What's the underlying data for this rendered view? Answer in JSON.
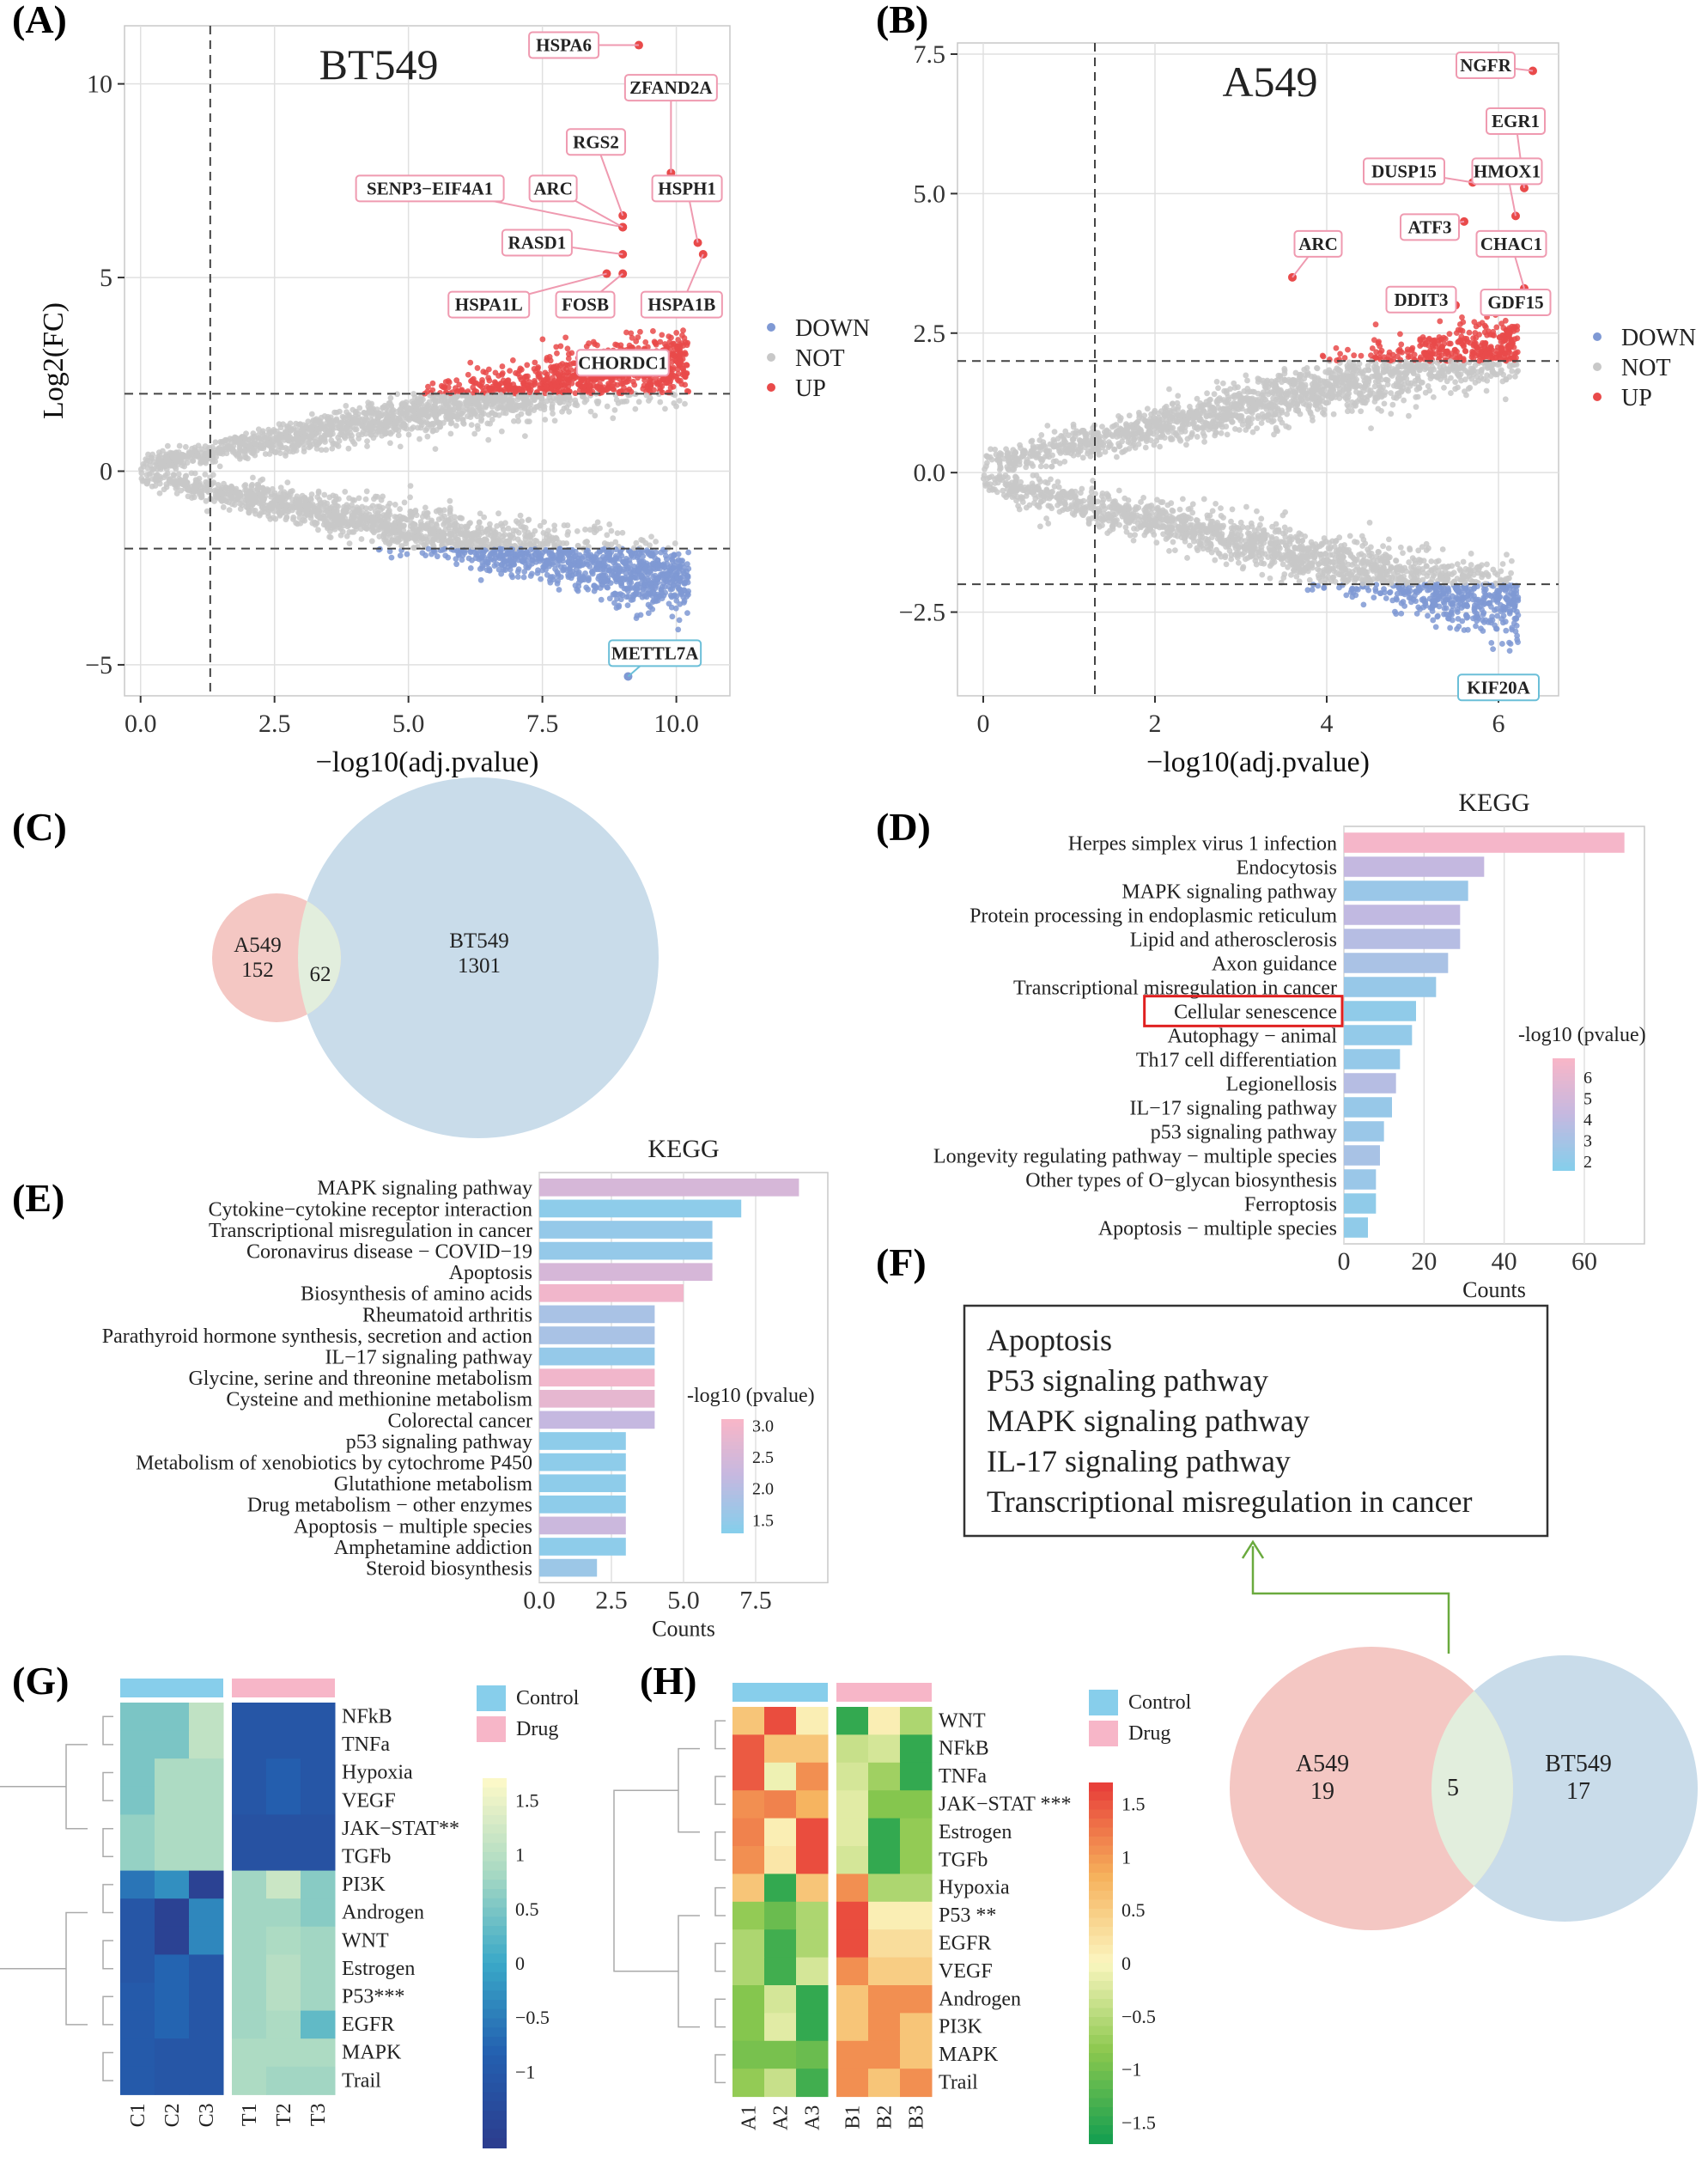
{
  "panel_labels": [
    "(A)",
    "(B)",
    "(C)",
    "(D)",
    "(E)",
    "(F)",
    "(G)",
    "(H)"
  ],
  "chart_data": [
    {
      "id": "A",
      "type": "scatter",
      "title": "BT549",
      "xlabel": "−log10(adj.pvalue)",
      "ylabel": "Log2(FC)",
      "xlim": [
        -0.3,
        11
      ],
      "ylim": [
        -5.8,
        11.5
      ],
      "xticks": [
        "0.0",
        "2.5",
        "5.0",
        "7.5",
        "10.0"
      ],
      "xtick_vals": [
        0,
        2.5,
        5,
        7.5,
        10
      ],
      "yticks": [
        "−5",
        "0",
        "5",
        "10"
      ],
      "ytick_vals": [
        -5,
        0,
        5,
        10
      ],
      "vline": 1.3,
      "hlines": [
        2,
        -2
      ],
      "legend": [
        "DOWN",
        "NOT",
        "UP"
      ],
      "legend_colors": [
        "#7f99d4",
        "#c8c8c8",
        "#e94a4a"
      ],
      "labels": [
        {
          "text": "HSPA6",
          "x": 9.3,
          "y": 11.0,
          "lx": 7.9,
          "ly": 11.0
        },
        {
          "text": "ZFAND2A",
          "x": 9.9,
          "y": 7.7,
          "lx": 9.9,
          "ly": 9.9
        },
        {
          "text": "RGS2",
          "x": 9.0,
          "y": 6.6,
          "lx": 8.5,
          "ly": 8.5
        },
        {
          "text": "HSPH1",
          "x": 10.4,
          "y": 5.9,
          "lx": 10.2,
          "ly": 7.3
        },
        {
          "text": "SENP3−EIF4A1",
          "x": 9.0,
          "y": 6.3,
          "lx": 5.4,
          "ly": 7.3
        },
        {
          "text": "ARC",
          "x": 9.0,
          "y": 6.3,
          "lx": 7.7,
          "ly": 7.3
        },
        {
          "text": "RASD1",
          "x": 9.0,
          "y": 5.6,
          "lx": 7.4,
          "ly": 5.9
        },
        {
          "text": "HSPA1L",
          "x": 8.7,
          "y": 5.1,
          "lx": 6.5,
          "ly": 4.3
        },
        {
          "text": "FOSB",
          "x": 9.0,
          "y": 5.1,
          "lx": 8.3,
          "ly": 4.3
        },
        {
          "text": "HSPA1B",
          "x": 10.5,
          "y": 5.6,
          "lx": 10.1,
          "ly": 4.3
        },
        {
          "text": "CHORDC1",
          "x": 9.0,
          "y": 2.8,
          "lx": 9.0,
          "ly": 2.8
        },
        {
          "text": "METTL7A",
          "x": 9.1,
          "y": -5.3,
          "lx": 9.6,
          "ly": -4.7
        }
      ]
    },
    {
      "id": "B",
      "type": "scatter",
      "title": "A549",
      "xlabel": "−log10(adj.pvalue)",
      "ylabel": "",
      "xlim": [
        -0.3,
        6.7
      ],
      "ylim": [
        -4.0,
        7.7
      ],
      "xticks": [
        "0",
        "2",
        "4",
        "6"
      ],
      "xtick_vals": [
        0,
        2,
        4,
        6
      ],
      "yticks": [
        "−2.5",
        "0.0",
        "2.5",
        "5.0",
        "7.5"
      ],
      "ytick_vals": [
        -2.5,
        0,
        2.5,
        5,
        7.5
      ],
      "vline": 1.3,
      "hlines": [
        2,
        -2
      ],
      "legend": [
        "DOWN",
        "NOT",
        "UP"
      ],
      "legend_colors": [
        "#7f99d4",
        "#c8c8c8",
        "#e94a4a"
      ],
      "labels": [
        {
          "text": "NGFR",
          "x": 6.4,
          "y": 7.2,
          "lx": 5.85,
          "ly": 7.3
        },
        {
          "text": "EGR1",
          "x": 6.3,
          "y": 5.1,
          "lx": 6.2,
          "ly": 6.3
        },
        {
          "text": "DUSP15",
          "x": 5.7,
          "y": 5.2,
          "lx": 4.9,
          "ly": 5.4
        },
        {
          "text": "HMOX1",
          "x": 6.2,
          "y": 4.6,
          "lx": 6.1,
          "ly": 5.4
        },
        {
          "text": "ATF3",
          "x": 5.6,
          "y": 4.5,
          "lx": 5.2,
          "ly": 4.4
        },
        {
          "text": "ARC",
          "x": 3.6,
          "y": 3.5,
          "lx": 3.9,
          "ly": 4.1
        },
        {
          "text": "CHAC1",
          "x": 6.3,
          "y": 3.3,
          "lx": 6.15,
          "ly": 4.1
        },
        {
          "text": "DDIT3",
          "x": 5.5,
          "y": 3.0,
          "lx": 5.1,
          "ly": 3.1
        },
        {
          "text": "GDF15",
          "x": 6.4,
          "y": 3.2,
          "lx": 6.2,
          "ly": 3.05
        },
        {
          "text": "KIF20A",
          "x": 6.4,
          "y": -3.8,
          "lx": 6.0,
          "ly": -3.85
        }
      ]
    },
    {
      "id": "C",
      "type": "venn",
      "sets": [
        {
          "name": "A549",
          "count": "152"
        },
        {
          "name": "BT549",
          "count": "1301"
        }
      ],
      "overlap": "62",
      "colors": [
        "#f4c7c3",
        "#c9dcea",
        "#e2eedd"
      ]
    },
    {
      "id": "D",
      "type": "bar",
      "title": "KEGG",
      "xlabel": "Counts",
      "xlim": [
        0,
        75
      ],
      "xticks": [
        "0",
        "20",
        "40",
        "60"
      ],
      "xtick_vals": [
        0,
        20,
        40,
        60
      ],
      "categories": [
        "Herpes simplex virus 1 infection",
        "Endocytosis",
        "MAPK signaling pathway",
        "Protein processing in endoplasmic reticulum",
        "Lipid and atherosclerosis",
        "Axon guidance",
        "Transcriptional misregulation in cancer",
        "Cellular senescence",
        "Autophagy − animal",
        "Th17 cell differentiation",
        "Legionellosis",
        "IL−17 signaling pathway",
        "p53 signaling pathway",
        "Longevity regulating pathway − multiple species",
        "Other types of O−glycan biosynthesis",
        "Ferroptosis",
        "Apoptosis − multiple species"
      ],
      "values": [
        70,
        35,
        31,
        29,
        29,
        26,
        23,
        18,
        17,
        14,
        13,
        12,
        10,
        9,
        8,
        8,
        6
      ],
      "neglog10p": [
        6.8,
        4.2,
        2.4,
        4.1,
        3.6,
        3.1,
        2.3,
        2.0,
        2.1,
        2.2,
        3.6,
        2.3,
        2.4,
        3.0,
        2.4,
        2.0,
        2.0
      ],
      "highlight": "Cellular senescence",
      "legend_title": "-log10 (pvalue)",
      "legend_ticks": [
        "6",
        "5",
        "4",
        "3",
        "2"
      ],
      "legend_tick_vals": [
        6,
        5,
        4,
        3,
        2
      ],
      "legend_range": [
        1.6,
        6.9
      ]
    },
    {
      "id": "E",
      "type": "bar",
      "title": "KEGG",
      "xlabel": "Counts",
      "xlim": [
        0,
        10
      ],
      "xticks": [
        "0.0",
        "2.5",
        "5.0",
        "7.5"
      ],
      "xtick_vals": [
        0,
        2.5,
        5,
        7.5
      ],
      "categories": [
        "MAPK signaling pathway",
        "Cytokine−cytokine receptor interaction",
        "Transcriptional misregulation in cancer",
        "Coronavirus disease − COVID−19",
        "Apoptosis",
        "Biosynthesis of amino acids",
        "Rheumatoid arthritis",
        "Parathyroid hormone synthesis, secretion and action",
        "IL−17 signaling pathway",
        "Glycine, serine and threonine metabolism",
        "Cysteine and methionine metabolism",
        "Colorectal cancer",
        "p53 signaling pathway",
        "Metabolism of xenobiotics by cytochrome P450",
        "Glutathione metabolism",
        "Drug metabolism − other enzymes",
        "Apoptosis − multiple species",
        "Amphetamine addiction",
        "Steroid biosynthesis"
      ],
      "values": [
        9,
        7,
        6,
        6,
        6,
        5,
        4,
        4,
        4,
        4,
        4,
        4,
        3,
        3,
        3,
        3,
        3,
        3,
        2
      ],
      "neglog10p": [
        2.5,
        1.4,
        1.5,
        1.5,
        2.5,
        3.0,
        1.8,
        1.8,
        1.5,
        3.0,
        2.8,
        2.2,
        1.4,
        1.4,
        1.4,
        1.4,
        2.3,
        1.4,
        1.6
      ],
      "legend_title": "-log10 (pvalue)",
      "legend_ticks": [
        "3.0",
        "2.5",
        "2.0",
        "1.5"
      ],
      "legend_tick_vals": [
        3.0,
        2.5,
        2.0,
        1.5
      ],
      "legend_range": [
        1.3,
        3.1
      ]
    },
    {
      "id": "F",
      "type": "venn",
      "sets": [
        {
          "name": "A549",
          "count": "19"
        },
        {
          "name": "BT549",
          "count": "17"
        }
      ],
      "overlap": "5",
      "colors": [
        "#f4c7c3",
        "#c9dcea",
        "#e2eedd"
      ],
      "box_items": [
        "Apoptosis",
        "P53 signaling pathway",
        "MAPK signaling pathway",
        "IL-17 signaling pathway",
        "Transcriptional misregulation in cancer"
      ]
    },
    {
      "id": "G",
      "type": "heatmap",
      "palette": "blue",
      "columns": [
        "C1",
        "C2",
        "C3",
        "T1",
        "T2",
        "T3"
      ],
      "rows": [
        "NFkB",
        "TNFa",
        "Hypoxia",
        "VEGF",
        "JAK−STAT**",
        "TGFb",
        "PI3K",
        "Androgen",
        "WNT",
        "Estrogen",
        "P53***",
        "EGFR",
        "MAPK",
        "Trail"
      ],
      "highlight_rows": [
        "JAK−STAT**",
        "P53***"
      ],
      "values": [
        [
          0.5,
          0.5,
          1.1,
          -1.1,
          -1.1,
          -1.1
        ],
        [
          0.5,
          0.5,
          1.1,
          -1.1,
          -1.1,
          -1.1
        ],
        [
          0.5,
          0.9,
          0.9,
          -1.1,
          -0.9,
          -1.1
        ],
        [
          0.5,
          0.9,
          0.9,
          -1.1,
          -0.9,
          -1.1
        ],
        [
          0.7,
          0.9,
          0.9,
          -1.2,
          -1.2,
          -1.2
        ],
        [
          0.7,
          0.9,
          0.9,
          -1.2,
          -1.2,
          -1.2
        ],
        [
          -0.6,
          -0.3,
          -1.6,
          0.8,
          1.2,
          0.6
        ],
        [
          -1.1,
          -1.6,
          -0.4,
          0.8,
          0.8,
          0.6
        ],
        [
          -1.1,
          -1.6,
          -0.4,
          0.8,
          0.9,
          0.8
        ],
        [
          -1.1,
          -0.8,
          -1.1,
          0.8,
          1.0,
          0.8
        ],
        [
          -1.0,
          -0.8,
          -1.1,
          0.8,
          1.0,
          0.8
        ],
        [
          -1.0,
          -0.8,
          -1.1,
          0.8,
          0.9,
          0.3
        ],
        [
          -1.0,
          -1.1,
          -1.1,
          0.9,
          0.9,
          0.9
        ],
        [
          -1.0,
          -1.1,
          -1.1,
          0.9,
          0.8,
          0.8
        ]
      ],
      "legend": [
        "Control",
        "Drug"
      ],
      "legend_colors": [
        "#87ceeb",
        "#f7b6c8"
      ],
      "scale_ticks": [
        "1.5",
        "1",
        "0.5",
        "0",
        "−0.5",
        "−1"
      ],
      "scale_tick_vals": [
        1.5,
        1,
        0.5,
        0,
        -0.5,
        -1
      ],
      "scale_range": [
        -1.7,
        1.7
      ]
    },
    {
      "id": "H",
      "type": "heatmap",
      "palette": "redgreen",
      "columns": [
        "A1",
        "A2",
        "A3",
        "B1",
        "B2",
        "B3"
      ],
      "rows": [
        "WNT",
        "NFkB",
        "TNFa",
        "JAK−STAT ***",
        "Estrogen",
        "TGFb",
        "Hypoxia",
        "P53 **",
        "EGFR",
        "VEGF",
        "Androgen",
        "PI3K",
        "MAPK",
        "Trail"
      ],
      "highlight_rows": [
        "JAK−STAT ***",
        "P53 **"
      ],
      "values": [
        [
          0.6,
          1.6,
          0.1,
          -1.5,
          0.1,
          -0.6
        ],
        [
          1.5,
          0.6,
          0.6,
          -0.4,
          -0.3,
          -1.5
        ],
        [
          1.5,
          -0.1,
          1.1,
          -0.3,
          -0.7,
          -1.5
        ],
        [
          1.1,
          1.2,
          0.8,
          -0.2,
          -0.9,
          -0.9
        ],
        [
          1.2,
          0.1,
          1.6,
          -0.2,
          -1.5,
          -0.8
        ],
        [
          1.1,
          0.2,
          1.6,
          -0.3,
          -1.5,
          -0.8
        ],
        [
          0.6,
          -1.5,
          0.6,
          1.1,
          -0.6,
          -0.6
        ],
        [
          -0.8,
          -1.1,
          -0.6,
          1.6,
          0.1,
          0.1
        ],
        [
          -0.6,
          -1.4,
          -0.6,
          1.6,
          0.3,
          0.3
        ],
        [
          -0.6,
          -1.4,
          -0.3,
          1.1,
          0.5,
          0.5
        ],
        [
          -0.9,
          -0.3,
          -1.5,
          0.6,
          1.1,
          1.1
        ],
        [
          -0.9,
          -0.2,
          -1.5,
          0.6,
          1.1,
          0.6
        ],
        [
          -1.0,
          -1.0,
          -1.1,
          1.1,
          1.1,
          0.6
        ],
        [
          -0.8,
          -0.4,
          -1.4,
          1.1,
          0.6,
          1.1
        ]
      ],
      "legend": [
        "Control",
        "Drug"
      ],
      "legend_colors": [
        "#87ceeb",
        "#f7b6c8"
      ],
      "scale_ticks": [
        "1.5",
        "1",
        "0.5",
        "0",
        "−0.5",
        "−1",
        "−1.5"
      ],
      "scale_tick_vals": [
        1.5,
        1,
        0.5,
        0,
        -0.5,
        -1,
        -1.5
      ],
      "scale_range": [
        -1.7,
        1.7
      ]
    }
  ]
}
